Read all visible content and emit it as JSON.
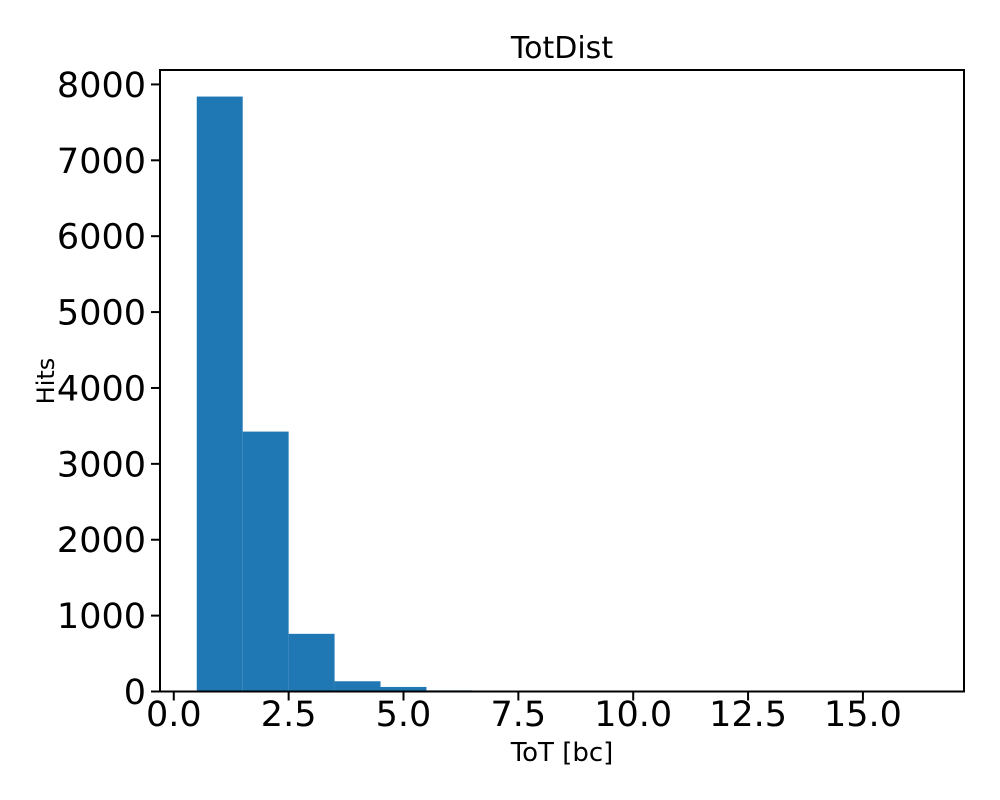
{
  "chart_data": {
    "type": "bar",
    "subtype": "histogram",
    "title": "TotDist",
    "xlabel": "ToT [bc]",
    "ylabel": "Hits",
    "bar_color": "#1f77b4",
    "axis_color": "#000000",
    "background_color": "#ffffff",
    "bin_edges": [
      0.5,
      1.5,
      2.5,
      3.5,
      4.5,
      5.5,
      6.5
    ],
    "bin_centers": [
      1,
      2,
      3,
      4,
      5,
      6
    ],
    "counts": [
      7840,
      3425,
      760,
      135,
      60,
      15
    ],
    "xlim": [
      -0.3,
      17.2
    ],
    "ylim": [
      0,
      8190
    ],
    "x_ticks": [
      0.0,
      2.5,
      5.0,
      7.5,
      10.0,
      12.5,
      15.0
    ],
    "x_tick_labels": [
      "0.0",
      "2.5",
      "5.0",
      "7.5",
      "10.0",
      "12.5",
      "15.0"
    ],
    "y_ticks": [
      0,
      1000,
      2000,
      3000,
      4000,
      5000,
      6000,
      7000,
      8000
    ],
    "y_tick_labels": [
      "0",
      "1000",
      "2000",
      "3000",
      "4000",
      "5000",
      "6000",
      "7000",
      "8000"
    ],
    "grid": false,
    "legend": null
  }
}
